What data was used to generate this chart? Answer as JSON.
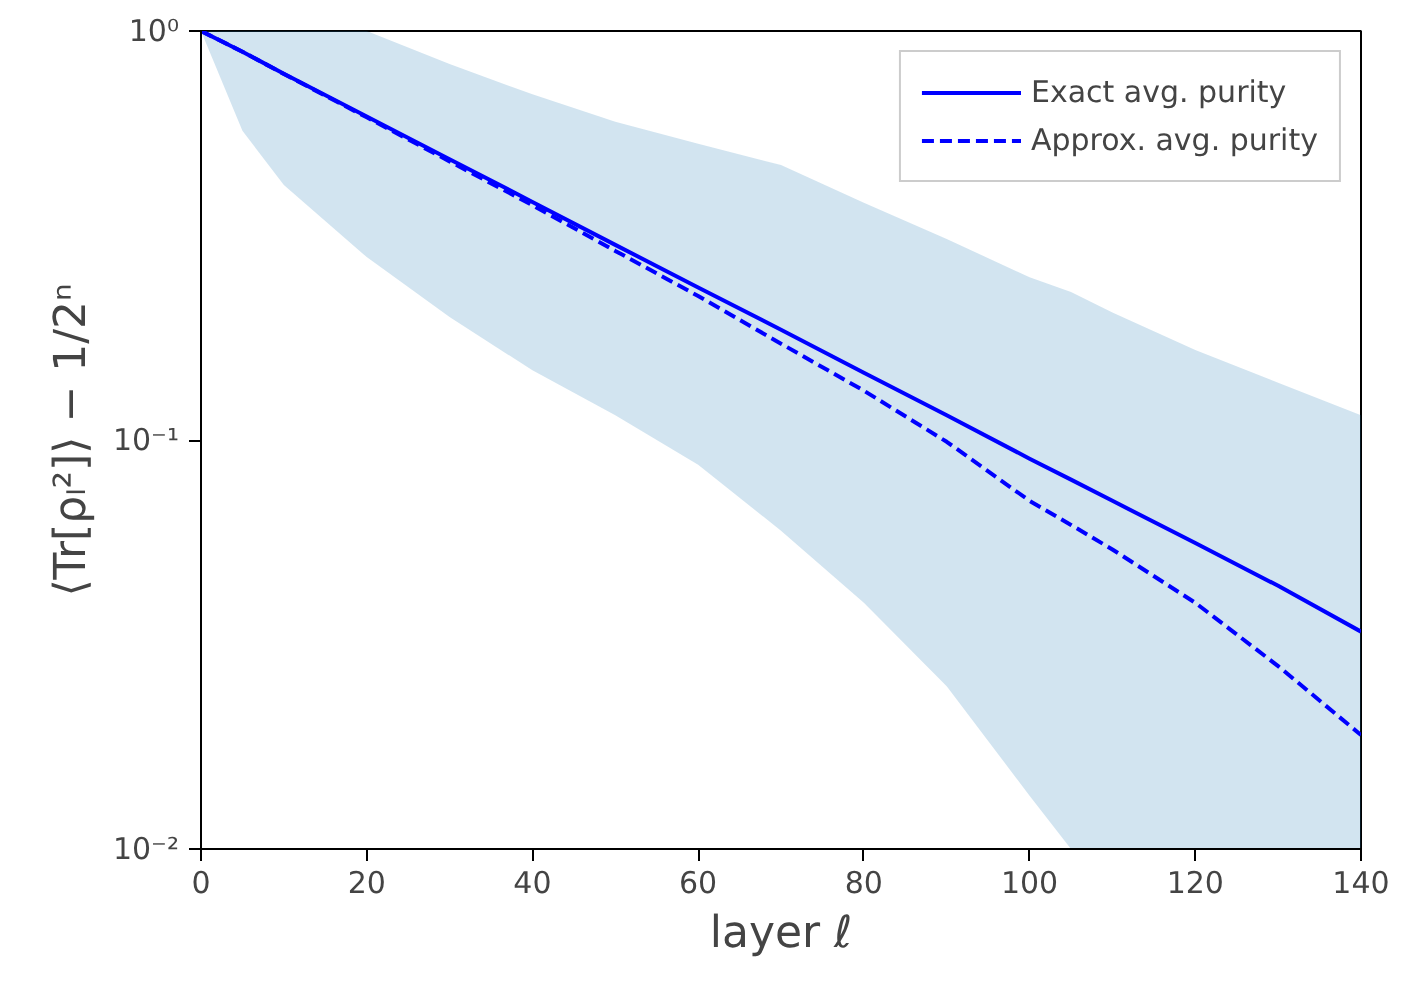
{
  "chart_data": {
    "type": "line",
    "xlabel": "layer ℓ",
    "ylabel": "⟨Tr[ρₗ²]⟩ − 1/2ⁿ",
    "log": "y",
    "grid": false,
    "legend": "top right",
    "marker": "none",
    "xlim": [
      0,
      140
    ],
    "ylim": [
      0.01,
      1
    ],
    "xticks": [
      0,
      20,
      40,
      60,
      80,
      100,
      120,
      140
    ],
    "yticks": [
      {
        "value": 1,
        "label": "10⁰"
      },
      {
        "value": 0.1,
        "label": "10⁻¹"
      },
      {
        "value": 0.01,
        "label": "10⁻²"
      }
    ],
    "x": [
      0,
      5,
      10,
      20,
      30,
      40,
      50,
      60,
      70,
      80,
      90,
      100,
      105,
      110,
      120,
      130,
      140
    ],
    "series": [
      {
        "name": "Exact avg. purity",
        "color": "#0000ff",
        "line_style": "solid",
        "values": [
          1,
          0.89,
          0.786,
          0.618,
          0.486,
          0.382,
          0.3,
          0.236,
          0.186,
          0.146,
          0.115,
          0.09,
          0.08,
          0.071,
          0.056,
          0.044,
          0.034
        ],
        "upper": [
          1,
          1,
          1,
          1,
          0.83,
          0.7,
          0.6,
          0.53,
          0.47,
          0.38,
          0.31,
          0.25,
          0.23,
          0.205,
          0.166,
          0.138,
          0.115
        ],
        "lower": [
          1,
          0.57,
          0.42,
          0.28,
          0.2,
          0.148,
          0.115,
          0.087,
          0.06,
          0.04,
          0.025,
          0.0135,
          0.01,
          0.01,
          0.01,
          0.01,
          0.01
        ]
      },
      {
        "name": "Approx. avg. purity",
        "color": "#0000ff",
        "line_style": "dashed",
        "values": [
          1,
          0.89,
          0.785,
          0.615,
          0.48,
          0.375,
          0.29,
          0.225,
          0.172,
          0.132,
          0.099,
          0.071,
          0.062,
          0.054,
          0.04,
          0.028,
          0.019
        ]
      }
    ]
  }
}
